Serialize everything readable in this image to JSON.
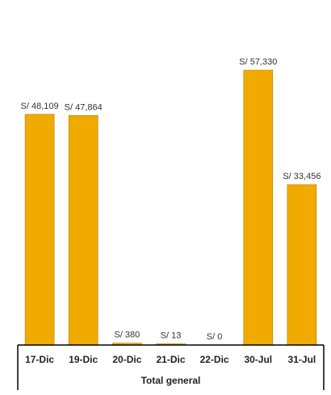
{
  "chart_data": {
    "type": "bar",
    "categories": [
      "17-Dic",
      "19-Dic",
      "20-Dic",
      "21-Dic",
      "22-Dic",
      "30-Jul",
      "31-Jul"
    ],
    "values": [
      48109,
      47864,
      380,
      13,
      0,
      57330,
      33456
    ],
    "data_labels": [
      "S/ 48,109",
      "S/ 47,864",
      "S/ 380",
      "S/ 13",
      "S/ 0",
      "S/ 57,330",
      "S/ 33,456"
    ],
    "group_label": "Total general",
    "ylim": [
      0,
      62000
    ],
    "grid": false,
    "legend": "none",
    "bar_color": "#f0aa00",
    "bar_edge_color": "#b07c00"
  }
}
